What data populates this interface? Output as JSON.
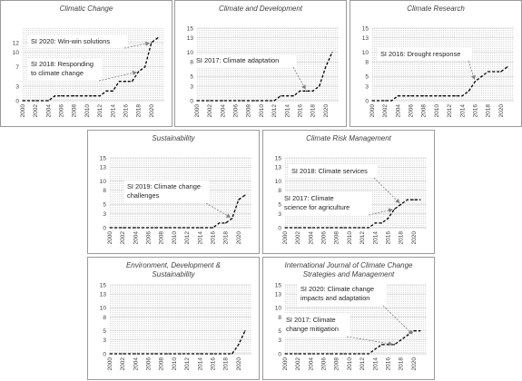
{
  "chart_data": [
    {
      "type": "line",
      "title": "Climatic Change",
      "x": [
        2000,
        2001,
        2002,
        2003,
        2004,
        2005,
        2006,
        2007,
        2008,
        2009,
        2010,
        2011,
        2012,
        2013,
        2014,
        2015,
        2016,
        2017,
        2018,
        2019,
        2020,
        2021
      ],
      "values": [
        0,
        0,
        0,
        0,
        0,
        1,
        1,
        1,
        1,
        1,
        1,
        1,
        1,
        2,
        2,
        4,
        4,
        4,
        6,
        7,
        12,
        13
      ],
      "ylim": [
        0,
        15
      ],
      "yticks": [
        0,
        3,
        7,
        10,
        12
      ],
      "xticks": [
        "2000",
        "2002",
        "2004",
        "2006",
        "2008",
        "2010",
        "2012",
        "2014",
        "2016",
        "2018",
        "2020"
      ],
      "annotations": [
        {
          "lines": [
            "SI 2020: Win-win solutions"
          ],
          "x": 2020,
          "y": 12
        },
        {
          "lines": [
            "SI 2018: Responding",
            "to climate change"
          ],
          "x": 2018,
          "y": 6
        }
      ]
    },
    {
      "type": "line",
      "title": "Climate and Development",
      "x": [
        2000,
        2001,
        2002,
        2003,
        2004,
        2005,
        2006,
        2007,
        2008,
        2009,
        2010,
        2011,
        2012,
        2013,
        2014,
        2015,
        2016,
        2017,
        2018,
        2019,
        2020,
        2021
      ],
      "values": [
        0,
        0,
        0,
        0,
        0,
        0,
        0,
        0,
        0,
        0,
        0,
        0,
        0,
        1,
        1,
        1,
        2,
        2,
        2,
        3,
        7,
        10
      ],
      "ylim": [
        0,
        15
      ],
      "yticks": [
        0,
        3,
        5,
        8,
        10,
        13,
        15
      ],
      "xticks": [
        "2000",
        "2002",
        "2004",
        "2006",
        "2008",
        "2010",
        "2012",
        "2014",
        "2016",
        "2018",
        "2020"
      ],
      "annotations": [
        {
          "lines": [
            "SI 2017: Climate adaptation"
          ],
          "x": 2017,
          "y": 2
        }
      ]
    },
    {
      "type": "line",
      "title": "Climate Research",
      "x": [
        2000,
        2001,
        2002,
        2003,
        2004,
        2005,
        2006,
        2007,
        2008,
        2009,
        2010,
        2011,
        2012,
        2013,
        2014,
        2015,
        2016,
        2017,
        2018,
        2019,
        2020,
        2021
      ],
      "values": [
        0,
        0,
        0,
        0,
        1,
        1,
        1,
        1,
        1,
        1,
        1,
        1,
        1,
        1,
        1,
        2,
        4,
        5,
        6,
        6,
        6,
        7
      ],
      "ylim": [
        0,
        15
      ],
      "yticks": [
        0,
        3,
        5,
        8,
        10,
        13,
        15
      ],
      "xticks": [
        "2000",
        "2002",
        "2004",
        "2006",
        "2008",
        "2010",
        "2012",
        "2014",
        "2016",
        "2018",
        "2020"
      ],
      "annotations": [
        {
          "lines": [
            "SI 2016: Drought response"
          ],
          "x": 2016,
          "y": 4
        }
      ]
    },
    {
      "type": "line",
      "title": "Sustainability",
      "x": [
        2000,
        2001,
        2002,
        2003,
        2004,
        2005,
        2006,
        2007,
        2008,
        2009,
        2010,
        2011,
        2012,
        2013,
        2014,
        2015,
        2016,
        2017,
        2018,
        2019,
        2020,
        2021
      ],
      "values": [
        0,
        0,
        0,
        0,
        0,
        0,
        0,
        0,
        0,
        0,
        0,
        0,
        0,
        0,
        0,
        0,
        0,
        1,
        1,
        2,
        6,
        7
      ],
      "ylim": [
        0,
        15
      ],
      "yticks": [
        0,
        3,
        5,
        8,
        10,
        13,
        15
      ],
      "xticks": [
        "2000",
        "2002",
        "2004",
        "2006",
        "2008",
        "2010",
        "2012",
        "2014",
        "2016",
        "2018",
        "2020"
      ],
      "annotations": [
        {
          "lines": [
            "SI 2019: Climate change",
            "challenges"
          ],
          "x": 2019,
          "y": 2
        }
      ]
    },
    {
      "type": "line",
      "title": "Climate Risk Management",
      "x": [
        2000,
        2001,
        2002,
        2003,
        2004,
        2005,
        2006,
        2007,
        2008,
        2009,
        2010,
        2011,
        2012,
        2013,
        2014,
        2015,
        2016,
        2017,
        2018,
        2019,
        2020,
        2021
      ],
      "values": [
        0,
        0,
        0,
        0,
        0,
        0,
        0,
        0,
        0,
        0,
        0,
        0,
        0,
        0,
        1,
        1,
        2,
        4,
        5,
        6,
        6,
        6
      ],
      "ylim": [
        0,
        15
      ],
      "yticks": [
        0,
        3,
        5,
        8,
        10,
        13,
        15
      ],
      "xticks": [
        "2000",
        "2002",
        "2004",
        "2006",
        "2008",
        "2010",
        "2012",
        "2014",
        "2016",
        "2018",
        "2020"
      ],
      "annotations": [
        {
          "lines": [
            "SI 2018: Climate services"
          ],
          "x": 2018,
          "y": 5
        },
        {
          "lines": [
            "SI 2017: Climate",
            "science for agriculture"
          ],
          "x": 2017,
          "y": 4
        }
      ]
    },
    {
      "type": "line",
      "title": "Environment, Development &",
      "title2": "Sustainability",
      "x": [
        2000,
        2001,
        2002,
        2003,
        2004,
        2005,
        2006,
        2007,
        2008,
        2009,
        2010,
        2011,
        2012,
        2013,
        2014,
        2015,
        2016,
        2017,
        2018,
        2019,
        2020,
        2021
      ],
      "values": [
        0,
        0,
        0,
        0,
        0,
        0,
        0,
        0,
        0,
        0,
        0,
        0,
        0,
        0,
        0,
        0,
        0,
        0,
        0,
        0,
        2,
        5
      ],
      "ylim": [
        0,
        15
      ],
      "yticks": [
        0,
        3,
        5,
        8,
        10,
        13,
        15
      ],
      "xticks": [
        "2000",
        "2002",
        "2004",
        "2006",
        "2008",
        "2010",
        "2012",
        "2014",
        "2016",
        "2018",
        "2020"
      ],
      "annotations": []
    },
    {
      "type": "line",
      "title": "International Journal of Climate Change",
      "title2": "Strategies and Management",
      "x": [
        2000,
        2001,
        2002,
        2003,
        2004,
        2005,
        2006,
        2007,
        2008,
        2009,
        2010,
        2011,
        2012,
        2013,
        2014,
        2015,
        2016,
        2017,
        2018,
        2019,
        2020,
        2021
      ],
      "values": [
        0,
        0,
        0,
        0,
        0,
        0,
        0,
        0,
        0,
        0,
        0,
        0,
        0,
        0,
        1,
        2,
        2,
        2,
        3,
        4,
        5,
        5
      ],
      "ylim": [
        0,
        15
      ],
      "yticks": [
        0,
        3,
        5,
        8,
        10,
        13,
        15
      ],
      "xticks": [
        "2000",
        "2002",
        "2004",
        "2006",
        "2008",
        "2010",
        "2012",
        "2014",
        "2016",
        "2018",
        "2020"
      ],
      "annotations": [
        {
          "lines": [
            "SI 2020: Climate change",
            "impacts and adaptation"
          ],
          "x": 2020,
          "y": 4
        },
        {
          "lines": [
            "SI 2017: Climate",
            "change mitigation"
          ],
          "x": 2017,
          "y": 2
        }
      ]
    }
  ]
}
